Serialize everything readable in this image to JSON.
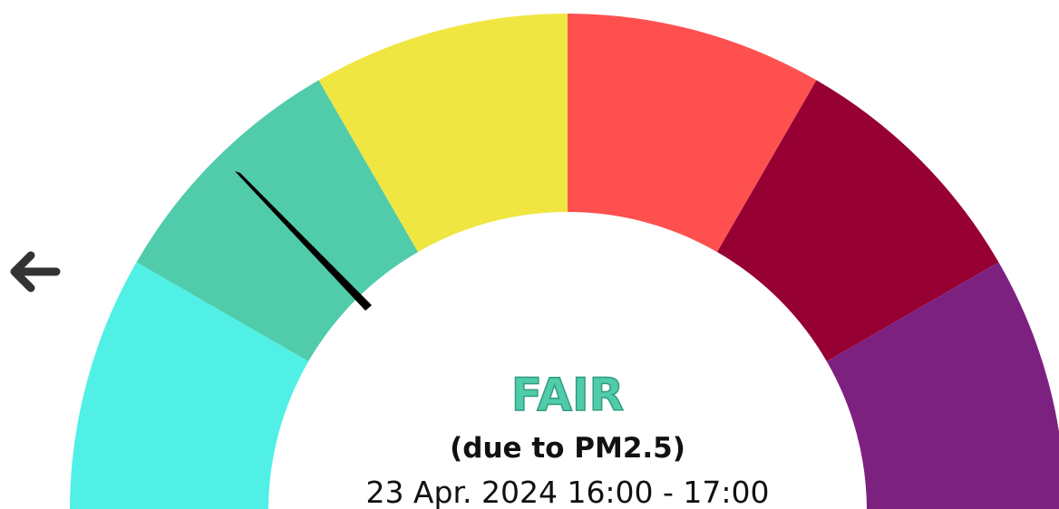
{
  "status": {
    "label": "FAIR",
    "cause": "(due to PM2.5)",
    "period": "23 Apr. 2024 16:00 - 17:00"
  }
}
